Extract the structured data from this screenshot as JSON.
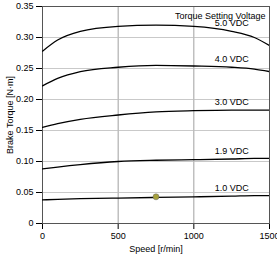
{
  "chart_data": {
    "type": "line",
    "x_label": "Speed [r/min]",
    "y_label": "Brake Torque [N·m]",
    "annotations": [
      "Torque Setting Voltage"
    ],
    "x": [
      0,
      100,
      250,
      500,
      750,
      1000,
      1250,
      1400,
      1500
    ],
    "series": [
      {
        "name": "5.0 VDC",
        "color": "#000000",
        "values": [
          0.278,
          0.296,
          0.31,
          0.318,
          0.32,
          0.318,
          0.31,
          0.3,
          0.287
        ]
      },
      {
        "name": "4.0 VDC",
        "color": "#000000",
        "values": [
          0.222,
          0.234,
          0.245,
          0.252,
          0.255,
          0.254,
          0.252,
          0.249,
          0.245
        ]
      },
      {
        "name": "3.0 VDC",
        "color": "#000000",
        "values": [
          0.155,
          0.161,
          0.168,
          0.175,
          0.18,
          0.182,
          0.183,
          0.183,
          0.183
        ]
      },
      {
        "name": "1.9 VDC",
        "color": "#000000",
        "values": [
          0.088,
          0.091,
          0.095,
          0.1,
          0.102,
          0.103,
          0.104,
          0.105,
          0.105
        ]
      },
      {
        "name": "1.0 VDC",
        "color": "#000000",
        "values": [
          0.038,
          0.039,
          0.04,
          0.041,
          0.042,
          0.043,
          0.044,
          0.045,
          0.045
        ]
      }
    ],
    "marker_points": {
      "x": [
        750
      ],
      "y": [
        0.043
      ],
      "color": "#a6a13a"
    },
    "xlim": [
      0,
      1500
    ],
    "xticks": [
      0,
      500,
      1000,
      1500
    ],
    "ylim": [
      0,
      0.35
    ],
    "yticks": [
      0,
      0.05,
      {
        "value": 0.1,
        "label": "0.10"
      },
      0.15,
      {
        "value": 0.2,
        "label": "0.20"
      },
      0.25,
      {
        "value": 0.3,
        "label": "0.30"
      },
      0.35
    ],
    "grid": true
  }
}
